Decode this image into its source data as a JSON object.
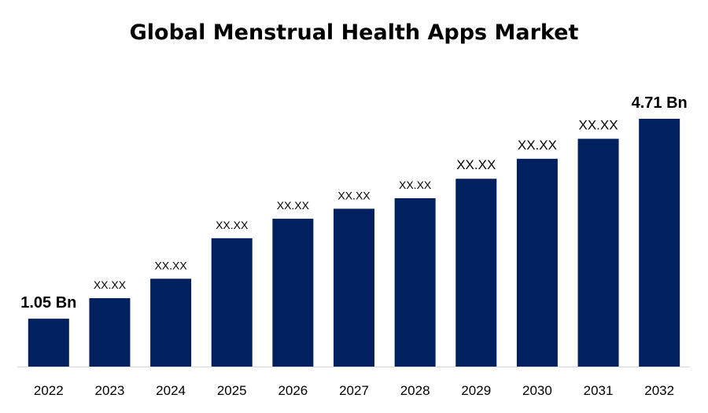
{
  "chart_data": {
    "type": "bar",
    "title": "Global Menstrual Health Apps Market",
    "xlabel": "",
    "ylabel": "",
    "categories": [
      "2022",
      "2023",
      "2024",
      "2025",
      "2026",
      "2027",
      "2028",
      "2029",
      "2030",
      "2031",
      "2032"
    ],
    "values": [
      1.05,
      1.3,
      1.67,
      2.44,
      2.81,
      3.0,
      3.2,
      3.57,
      3.95,
      4.33,
      4.71
    ],
    "data_labels": [
      "1.05 Bn",
      "XX.XX",
      "XX.XX",
      "XX.XX",
      "XX.XX",
      "XX.XX",
      "XX.XX",
      "XX.XX",
      "XX.XX",
      "XX.XX",
      "4.71 Bn"
    ],
    "ylim": [
      0,
      5.2
    ],
    "grid": false,
    "legend": "none",
    "bar_color": "#002060",
    "axis_color": "#d9d9d9"
  }
}
